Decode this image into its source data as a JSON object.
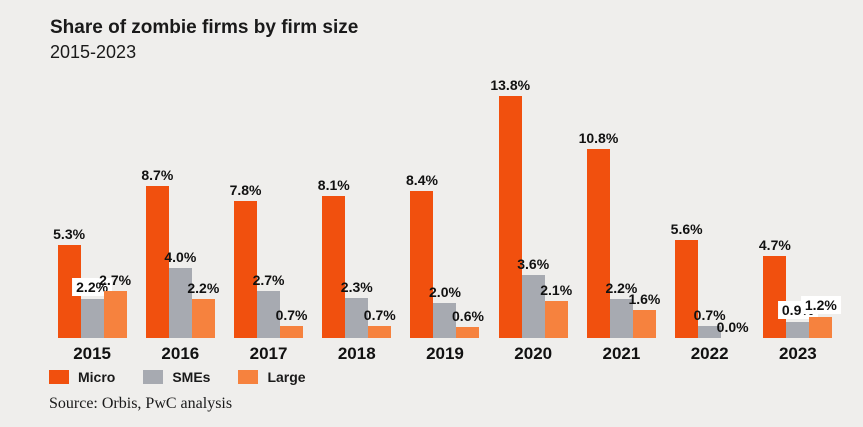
{
  "header": {
    "title": "Share of zombie firms by firm size",
    "subtitle": "2015-2023"
  },
  "source_text": "Source: Orbis, PwC analysis",
  "colors": {
    "background": "#efeeec",
    "text": "#1a1a1a",
    "label_box": "#ffffff"
  },
  "chart_data": {
    "type": "bar",
    "title": "Share of zombie firms by firm size",
    "subtitle": "2015-2023",
    "categories": [
      "2015",
      "2016",
      "2017",
      "2018",
      "2019",
      "2020",
      "2021",
      "2022",
      "2023"
    ],
    "series": [
      {
        "name": "Micro",
        "color": "#f1500e",
        "values": [
          5.3,
          8.7,
          7.8,
          8.1,
          8.4,
          13.8,
          10.8,
          5.6,
          4.7
        ]
      },
      {
        "name": "SMEs",
        "color": "#a7aab1",
        "values": [
          2.2,
          4.0,
          2.7,
          2.3,
          2.0,
          3.6,
          2.2,
          0.7,
          0.9
        ]
      },
      {
        "name": "Large",
        "color": "#f6823e",
        "values": [
          2.7,
          2.2,
          0.7,
          0.7,
          0.6,
          2.1,
          1.6,
          0.0,
          1.2
        ]
      }
    ],
    "value_label_format": "{value}%",
    "boxed_labels": [
      [
        0,
        1
      ],
      [
        8,
        1
      ],
      [
        8,
        2
      ]
    ],
    "ylim": [
      0,
      14.5
    ],
    "grid": false,
    "axes_shown": false,
    "legend_position": "bottom-left",
    "legend": [
      "Micro",
      "SMEs",
      "Large"
    ]
  }
}
